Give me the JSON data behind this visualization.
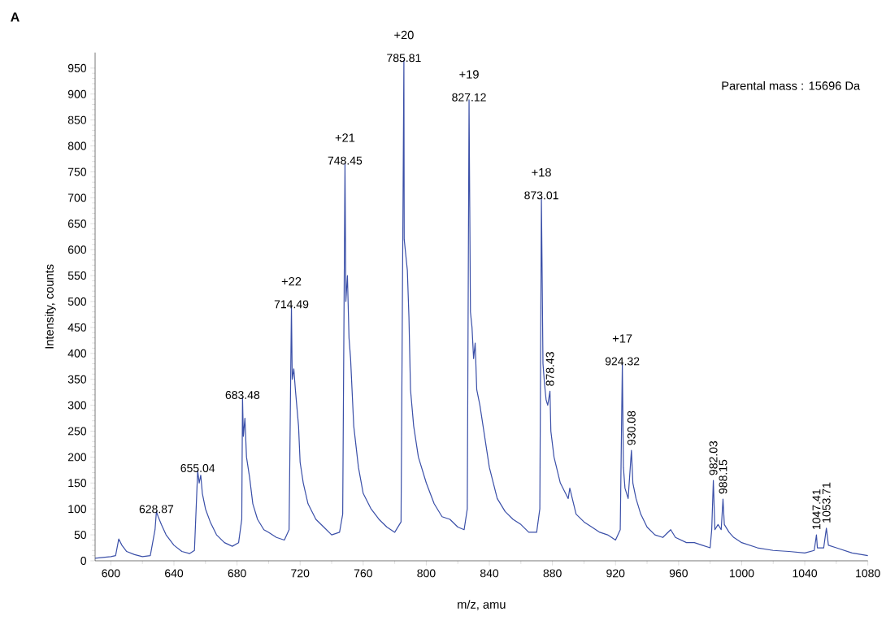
{
  "chart_data": {
    "type": "line",
    "xlabel": "m/z, amu",
    "ylabel": "Intensity, counts",
    "xlim": [
      590,
      1080
    ],
    "ylim": [
      0,
      980
    ],
    "xticks": [
      600,
      640,
      680,
      720,
      760,
      800,
      840,
      880,
      920,
      960,
      1000,
      1040,
      1080
    ],
    "yticks": [
      0,
      50,
      100,
      150,
      200,
      250,
      300,
      350,
      400,
      450,
      500,
      550,
      600,
      650,
      700,
      750,
      800,
      850,
      900,
      950
    ],
    "marker": "none",
    "line_style": "solid",
    "series": [
      {
        "color": "#3a4fa8",
        "x": [
          590,
          600,
          603,
          605,
          607,
          610,
          615,
          620,
          625,
          628,
          628.87,
          630,
          632,
          635,
          640,
          645,
          650,
          653,
          655.04,
          656,
          657,
          658,
          660,
          663,
          667,
          672,
          677,
          681,
          683,
          683.48,
          684,
          685,
          686,
          688,
          690,
          693,
          697,
          700,
          705,
          710,
          713,
          714.49,
          715,
          716,
          717,
          719,
          720,
          722,
          725,
          730,
          735,
          740,
          745,
          747,
          748.45,
          749,
          750,
          751,
          752,
          754,
          757,
          760,
          765,
          770,
          775,
          780,
          784,
          785.81,
          786,
          787,
          788,
          789,
          790,
          792,
          795,
          800,
          805,
          810,
          815,
          820,
          824,
          826,
          827.12,
          828,
          829,
          830,
          831,
          832,
          834,
          837,
          840,
          845,
          850,
          855,
          860,
          865,
          870,
          872,
          873.01,
          874,
          875,
          876,
          877,
          878.43,
          879,
          881,
          885,
          890,
          891,
          895,
          900,
          905,
          910,
          915,
          920,
          923,
          924.32,
          925,
          926,
          928,
          930.08,
          931,
          933,
          936,
          940,
          945,
          950,
          955,
          958,
          965,
          970,
          975,
          980,
          981,
          982.03,
          983,
          985,
          987,
          988.15,
          989,
          992,
          995,
          1000,
          1010,
          1020,
          1030,
          1040,
          1046,
          1047.41,
          1048,
          1052,
          1053.71,
          1055,
          1060,
          1070,
          1080
        ],
        "values": [
          5,
          8,
          10,
          42,
          30,
          18,
          12,
          8,
          10,
          60,
          95,
          85,
          70,
          50,
          30,
          18,
          14,
          20,
          174,
          150,
          165,
          130,
          100,
          75,
          50,
          35,
          28,
          35,
          80,
          315,
          240,
          275,
          200,
          160,
          110,
          80,
          60,
          55,
          45,
          40,
          60,
          490,
          350,
          370,
          330,
          260,
          190,
          150,
          110,
          80,
          65,
          50,
          55,
          90,
          767,
          500,
          550,
          430,
          390,
          260,
          180,
          130,
          100,
          80,
          65,
          55,
          75,
          965,
          620,
          590,
          560,
          470,
          330,
          260,
          200,
          150,
          110,
          85,
          80,
          65,
          60,
          100,
          889,
          480,
          450,
          390,
          420,
          330,
          300,
          240,
          180,
          120,
          95,
          80,
          70,
          55,
          55,
          100,
          700,
          380,
          340,
          310,
          300,
          327,
          250,
          200,
          150,
          120,
          140,
          90,
          75,
          65,
          55,
          50,
          40,
          60,
          380,
          180,
          140,
          120,
          213,
          150,
          120,
          90,
          65,
          50,
          45,
          60,
          45,
          35,
          35,
          30,
          25,
          60,
          155,
          60,
          70,
          60,
          119,
          70,
          55,
          45,
          35,
          25,
          20,
          18,
          15,
          20,
          50,
          25,
          25,
          63,
          30,
          25,
          15,
          10
        ]
      }
    ],
    "annotations": [
      "A",
      "Parental mass : 15696 Da",
      {
        "text": "628.87",
        "x": 628.87,
        "y": 95
      },
      {
        "text": "655.04",
        "x": 655.04,
        "y": 174
      },
      {
        "text": "683.48",
        "x": 683.48,
        "y": 315
      },
      {
        "text": "714.49",
        "x": 714.49,
        "y": 490
      },
      {
        "text": "+22",
        "x": 714.49,
        "y": 490
      },
      {
        "text": "748.45",
        "x": 748.45,
        "y": 767
      },
      {
        "text": "+21",
        "x": 748.45,
        "y": 767
      },
      {
        "text": "785.81",
        "x": 785.81,
        "y": 965
      },
      {
        "text": "+20",
        "x": 785.81,
        "y": 965
      },
      {
        "text": "827.12",
        "x": 827.12,
        "y": 889
      },
      {
        "text": "+19",
        "x": 827.12,
        "y": 889
      },
      {
        "text": "873.01",
        "x": 873.01,
        "y": 700
      },
      {
        "text": "+18",
        "x": 873.01,
        "y": 700
      },
      {
        "text": "878.43",
        "x": 878.43,
        "y": 327
      },
      {
        "text": "924.32",
        "x": 924.32,
        "y": 380
      },
      {
        "text": "+17",
        "x": 924.32,
        "y": 380
      },
      {
        "text": "930.08",
        "x": 930.08,
        "y": 213
      },
      {
        "text": "982.03",
        "x": 982.03,
        "y": 155
      },
      {
        "text": "988.15",
        "x": 988.15,
        "y": 119
      },
      {
        "text": "1047.41",
        "x": 1047.41,
        "y": 50
      },
      {
        "text": "1053.71",
        "x": 1053.71,
        "y": 63
      }
    ]
  }
}
